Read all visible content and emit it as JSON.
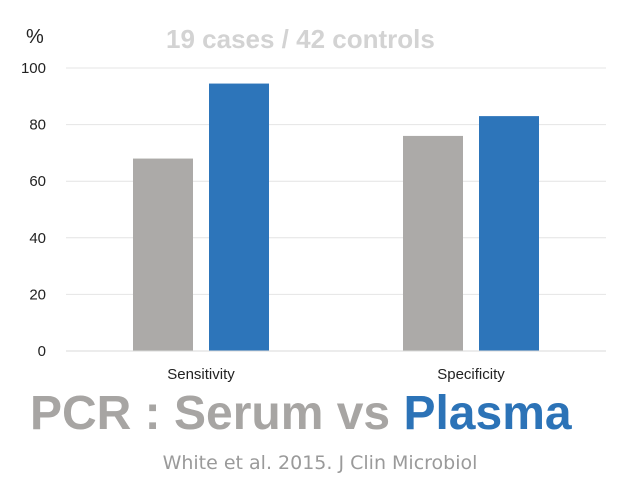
{
  "subtitle": "19 cases / 42 controls",
  "unit_label": "%",
  "headline": {
    "part1": "PCR : Serum vs ",
    "part2": "Plasma"
  },
  "citation": "White et al. 2015. J Clin Microbiol",
  "colors": {
    "serum": "#acaaa8",
    "plasma": "#2d75ba",
    "grid": "#e4e4e4",
    "headline_grey": "#a7a5a3",
    "headline_blue": "#2c73b7"
  },
  "chart_data": {
    "type": "bar",
    "categories": [
      "Sensitivity",
      "Specificity"
    ],
    "series": [
      {
        "values": [
          68,
          76
        ]
      },
      {
        "values": [
          94.5,
          83
        ]
      }
    ],
    "title": "19 cases / 42 controls",
    "ylabel": "%",
    "ylim": [
      0,
      100
    ],
    "yticks": [
      0,
      20,
      40,
      60,
      80,
      100
    ],
    "grid": true,
    "legend": "none"
  }
}
